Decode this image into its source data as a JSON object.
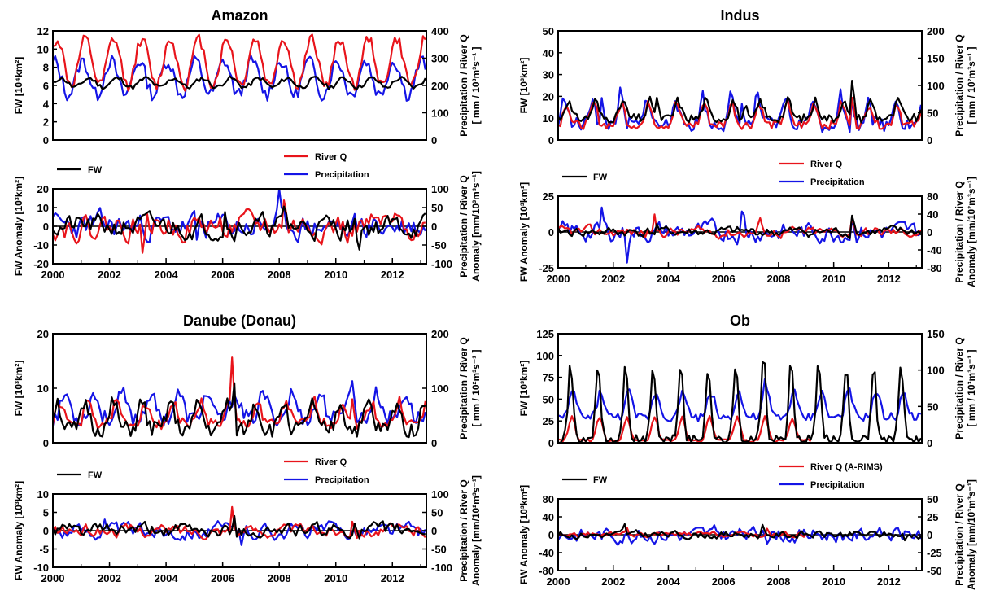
{
  "colors": {
    "fw": "#000000",
    "river_q": "#e8141b",
    "precipitation": "#1414e6",
    "axis": "#000000"
  },
  "chart_data": [
    {
      "id": "amazon_abs",
      "type": "line",
      "title": "Amazon",
      "ylabel": "FW [10⁴km²]",
      "ylabel_right": [
        "Precipitation / River Q",
        "[ mm / 10³m³s⁻¹ ]"
      ],
      "ylim": [
        0,
        12
      ],
      "yticks": [
        0,
        2,
        4,
        6,
        8,
        10,
        12
      ],
      "ylim_right": [
        0,
        400
      ],
      "yticks_right": [
        0,
        100,
        200,
        300,
        400
      ],
      "xlim": [
        2000,
        2013.2
      ],
      "xticks": [],
      "legend": [],
      "series": [
        {
          "key": "fw",
          "axis": "left",
          "gen": {
            "kind": "abs",
            "base": 5.8,
            "amp": 1.0,
            "power": 1,
            "phase": 0.28,
            "seed": 11,
            "noise": 0.25,
            "min": 3.5
          }
        },
        {
          "key": "river_q",
          "axis": "right",
          "gen": {
            "kind": "abs",
            "base": 200,
            "amp": 170,
            "power": 1,
            "phase": 0.15,
            "seed": 12,
            "noise": 20,
            "min": 70
          }
        },
        {
          "key": "precipitation",
          "axis": "right",
          "gen": {
            "kind": "abs",
            "base": 165,
            "amp": 125,
            "power": 1,
            "phase": 0.05,
            "seed": 13,
            "noise": 25,
            "min": 50
          }
        }
      ]
    },
    {
      "id": "amazon_anom",
      "type": "line",
      "title": "",
      "ylabel": "FW Anomaly [10³km²]",
      "ylabel_right": [
        "Precipitation / River Q",
        "Anomaly [mm/10³m³s⁻¹]"
      ],
      "ylim": [
        -20,
        20
      ],
      "yticks": [
        -20,
        -10,
        0,
        10,
        20
      ],
      "ylim_right": [
        -100,
        100
      ],
      "yticks_right": [
        -100,
        -50,
        0,
        50,
        100
      ],
      "xlim": [
        2000,
        2013.2
      ],
      "xticks": [
        2000,
        2002,
        2004,
        2006,
        2008,
        2010,
        2012
      ],
      "zero_line": true,
      "legend": [
        {
          "key": "fw",
          "label": "FW",
          "pos": "left"
        },
        {
          "key": "river_q",
          "label": "River Q",
          "pos": "right1"
        },
        {
          "key": "precipitation",
          "label": "Precipitation",
          "pos": "right2"
        }
      ],
      "series": [
        {
          "key": "fw",
          "axis": "left",
          "gen": {
            "kind": "anom",
            "amp": 5,
            "seed": 21,
            "spikes": [
              [
                2006.1,
                12
              ],
              [
                2008.2,
                10
              ],
              [
                2010.8,
                -13
              ]
            ]
          }
        },
        {
          "key": "river_q",
          "axis": "right",
          "gen": {
            "kind": "anom",
            "amp": 28,
            "seed": 22,
            "spikes": [
              [
                2003.2,
                -75
              ],
              [
                2008.2,
                90
              ],
              [
                2010.4,
                -80
              ]
            ]
          }
        },
        {
          "key": "precipitation",
          "axis": "right",
          "gen": {
            "kind": "anom",
            "amp": 30,
            "seed": 23,
            "spikes": [
              [
                2005.1,
                -65
              ],
              [
                2008.0,
                70
              ],
              [
                2010.4,
                -55
              ]
            ]
          }
        }
      ]
    },
    {
      "id": "indus_abs",
      "type": "line",
      "title": "Indus",
      "ylabel": "FW [10³km²]",
      "ylabel_right": [
        "Precipitation / River Q",
        "[ mm / 10²m³s⁻¹ ]"
      ],
      "ylim": [
        0,
        50
      ],
      "yticks": [
        0,
        10,
        20,
        30,
        40,
        50
      ],
      "ylim_right": [
        0,
        200
      ],
      "yticks_right": [
        0,
        50,
        100,
        150,
        200
      ],
      "xlim": [
        2000,
        2013.2
      ],
      "xticks": [],
      "legend": [],
      "series": [
        {
          "key": "fw",
          "axis": "left",
          "gen": {
            "kind": "abs",
            "base": 10,
            "amp": 8,
            "power": 4,
            "phase": 0.35,
            "seed": 31,
            "noise": 2,
            "min": 4,
            "spikes": [
              [
                2003.6,
                10
              ],
              [
                2006.8,
                6
              ],
              [
                2010.7,
                25
              ]
            ]
          }
        },
        {
          "key": "river_q",
          "axis": "right",
          "gen": {
            "kind": "abs",
            "base": 28,
            "amp": 40,
            "power": 4,
            "phase": 0.3,
            "seed": 32,
            "noise": 8,
            "min": 8,
            "spikes": [
              [
                2010.7,
                70
              ]
            ]
          }
        },
        {
          "key": "precipitation",
          "axis": "right",
          "gen": {
            "kind": "abs",
            "base": 28,
            "amp": 55,
            "power": 5,
            "phase": 0.25,
            "seed": 33,
            "noise": 14,
            "min": 2,
            "spikes": [
              [
                2001.6,
                50
              ],
              [
                2006.7,
                60
              ],
              [
                2010.7,
                60
              ]
            ]
          }
        }
      ]
    },
    {
      "id": "indus_anom",
      "type": "line",
      "title": "",
      "ylabel": "FW Anomaly [10³km²]",
      "ylabel_right": [
        "Precipitation / River Q",
        "Anomaly [mm/10²m³s⁻¹]"
      ],
      "ylim": [
        -25,
        25
      ],
      "yticks": [
        -25,
        0,
        25
      ],
      "ylim_right": [
        -80,
        80
      ],
      "yticks_right": [
        -80,
        -40,
        0,
        40,
        80
      ],
      "xlim": [
        2000,
        2013.2
      ],
      "xticks": [
        2000,
        2002,
        2004,
        2006,
        2008,
        2010,
        2012
      ],
      "zero_line": true,
      "legend": [
        {
          "key": "fw",
          "label": "FW",
          "pos": "left"
        },
        {
          "key": "river_q",
          "label": "River Q",
          "pos": "right1"
        },
        {
          "key": "precipitation",
          "label": "Precipitation",
          "pos": "right2"
        }
      ],
      "series": [
        {
          "key": "fw",
          "axis": "left",
          "gen": {
            "kind": "anom",
            "amp": 3,
            "seed": 41,
            "spikes": [
              [
                2010.7,
                20
              ],
              [
                2003.6,
                6
              ]
            ]
          }
        },
        {
          "key": "river_q",
          "axis": "right",
          "gen": {
            "kind": "anom",
            "amp": 10,
            "seed": 42,
            "spikes": [
              [
                2007.3,
                40
              ],
              [
                2003.5,
                30
              ],
              [
                2010.7,
                45
              ]
            ]
          }
        },
        {
          "key": "precipitation",
          "axis": "right",
          "gen": {
            "kind": "anom",
            "amp": 18,
            "seed": 43,
            "spikes": [
              [
                2001.6,
                55
              ],
              [
                2006.7,
                65
              ],
              [
                2002.5,
                -50
              ],
              [
                2010.7,
                50
              ]
            ]
          }
        }
      ]
    },
    {
      "id": "danube_abs",
      "type": "line",
      "title": "Danube (Donau)",
      "ylabel": "FW [10³km²]",
      "ylabel_right": [
        "Precipitation / River Q",
        "[ mm / 10²m³s⁻¹ ]"
      ],
      "ylim": [
        0,
        20
      ],
      "yticks": [
        0,
        10,
        20
      ],
      "ylim_right": [
        0,
        200
      ],
      "yticks_right": [
        0,
        100,
        200
      ],
      "xlim": [
        2000,
        2013.2
      ],
      "xticks": [],
      "legend": [],
      "series": [
        {
          "key": "fw",
          "axis": "left",
          "gen": {
            "kind": "abs",
            "base": 2.5,
            "amp": 5,
            "power": 3,
            "phase": 0.15,
            "seed": 51,
            "noise": 1.5,
            "min": 0.5,
            "spikes": [
              [
                2006.4,
                8
              ]
            ]
          }
        },
        {
          "key": "river_q",
          "axis": "right",
          "gen": {
            "kind": "abs",
            "base": 35,
            "amp": 40,
            "power": 3,
            "phase": 0.25,
            "seed": 52,
            "noise": 10,
            "min": 15,
            "spikes": [
              [
                2006.35,
                100
              ],
              [
                2010.6,
                45
              ]
            ]
          }
        },
        {
          "key": "precipitation",
          "axis": "right",
          "gen": {
            "kind": "abs",
            "base": 45,
            "amp": 45,
            "power": 2,
            "phase": 0.45,
            "seed": 53,
            "noise": 14,
            "min": 15,
            "spikes": [
              [
                2010.6,
                45
              ]
            ]
          }
        }
      ]
    },
    {
      "id": "danube_anom",
      "type": "line",
      "title": "",
      "ylabel": "FW Anomaly [10³km²]",
      "ylabel_right": [
        "Precipitation / River Q",
        "Anomaly [mm/10²m³s⁻¹]"
      ],
      "ylim": [
        -10,
        10
      ],
      "yticks": [
        -10,
        -5,
        0,
        5,
        10
      ],
      "ylim_right": [
        -100,
        100
      ],
      "yticks_right": [
        -100,
        -50,
        0,
        50,
        100
      ],
      "xlim": [
        2000,
        2013.2
      ],
      "xticks": [
        2000,
        2002,
        2004,
        2006,
        2008,
        2010,
        2012
      ],
      "zero_line": true,
      "legend": [
        {
          "key": "fw",
          "label": "FW",
          "pos": "left"
        },
        {
          "key": "river_q",
          "label": "River Q",
          "pos": "right1"
        },
        {
          "key": "precipitation",
          "label": "Precipitation",
          "pos": "right2"
        }
      ],
      "series": [
        {
          "key": "fw",
          "axis": "left",
          "gen": {
            "kind": "anom",
            "amp": 1.6,
            "seed": 61,
            "spikes": [
              [
                2006.4,
                6.5
              ],
              [
                2010.7,
                4
              ]
            ]
          }
        },
        {
          "key": "river_q",
          "axis": "right",
          "gen": {
            "kind": "anom",
            "amp": 14,
            "seed": 62,
            "spikes": [
              [
                2006.35,
                85
              ],
              [
                2010.6,
                55
              ]
            ]
          }
        },
        {
          "key": "precipitation",
          "axis": "right",
          "gen": {
            "kind": "anom",
            "amp": 18,
            "seed": 63,
            "spikes": [
              [
                2001.8,
                45
              ],
              [
                2006.7,
                -35
              ]
            ]
          }
        }
      ]
    },
    {
      "id": "ob_abs",
      "type": "line",
      "title": "Ob",
      "ylabel": "FW [10³km²]",
      "ylabel_right": [
        "Precipitation / River Q",
        "[ mm / 10³m³s⁻¹ ]"
      ],
      "ylim": [
        0,
        125
      ],
      "yticks": [
        0,
        25,
        50,
        75,
        100,
        125
      ],
      "ylim_right": [
        0,
        150
      ],
      "yticks_right": [
        0,
        50,
        100,
        150
      ],
      "xlim": [
        2000,
        2013.2
      ],
      "xticks": [],
      "legend": [],
      "series": [
        {
          "key": "fw",
          "axis": "left",
          "gen": {
            "kind": "abs",
            "base": 3,
            "amp": 85,
            "power": 6,
            "phase": 0.45,
            "seed": 71,
            "noise": 6,
            "min": 0,
            "spikes": [
              [
                2007.45,
                20
              ]
            ]
          }
        },
        {
          "key": "river_q",
          "axis": "right",
          "gen": {
            "kind": "abs",
            "base": 3,
            "amp": 32,
            "power": 4,
            "phase": 0.5,
            "seed": 72,
            "noise": 2,
            "min": 0,
            "end": 2009.2
          }
        },
        {
          "key": "precipitation",
          "axis": "right",
          "gen": {
            "kind": "abs",
            "base": 35,
            "amp": 35,
            "power": 3,
            "phase": 0.55,
            "seed": 73,
            "noise": 6,
            "min": 20,
            "spikes": [
              [
                2007.5,
                20
              ]
            ]
          }
        }
      ]
    },
    {
      "id": "ob_anom",
      "type": "line",
      "title": "",
      "ylabel": "FW Anomaly [10³km²]",
      "ylabel_right": [
        "Precipitation / River Q",
        "Anomaly [mm/10³m³s⁻¹]"
      ],
      "ylim": [
        -80,
        80
      ],
      "yticks": [
        -80,
        -40,
        0,
        40,
        80
      ],
      "ylim_right": [
        -50,
        50
      ],
      "yticks_right": [
        -50,
        -25,
        0,
        25,
        50
      ],
      "xlim": [
        2000,
        2013.2
      ],
      "xticks": [
        2000,
        2002,
        2004,
        2006,
        2008,
        2010,
        2012
      ],
      "zero_line": true,
      "legend": [
        {
          "key": "fw",
          "label": "FW",
          "pos": "left"
        },
        {
          "key": "river_q",
          "label": "River Q (A-RIMS)",
          "pos": "right1"
        },
        {
          "key": "precipitation",
          "label": "Precipitation",
          "pos": "right2"
        }
      ],
      "series": [
        {
          "key": "fw",
          "axis": "left",
          "gen": {
            "kind": "anom",
            "amp": 7,
            "seed": 81,
            "spikes": [
              [
                2007.45,
                32
              ],
              [
                2002.4,
                20
              ],
              [
                2012.6,
                -20
              ]
            ]
          }
        },
        {
          "key": "river_q",
          "axis": "right",
          "gen": {
            "kind": "anom",
            "amp": 3,
            "seed": 82,
            "end": 2009.2,
            "spikes": [
              [
                2002.5,
                8
              ],
              [
                2007.6,
                8
              ]
            ]
          }
        },
        {
          "key": "precipitation",
          "axis": "right",
          "gen": {
            "kind": "anom",
            "amp": 9,
            "seed": 83,
            "spikes": [
              [
                2007.45,
                25
              ],
              [
                2011.5,
                12
              ]
            ]
          }
        }
      ]
    }
  ]
}
